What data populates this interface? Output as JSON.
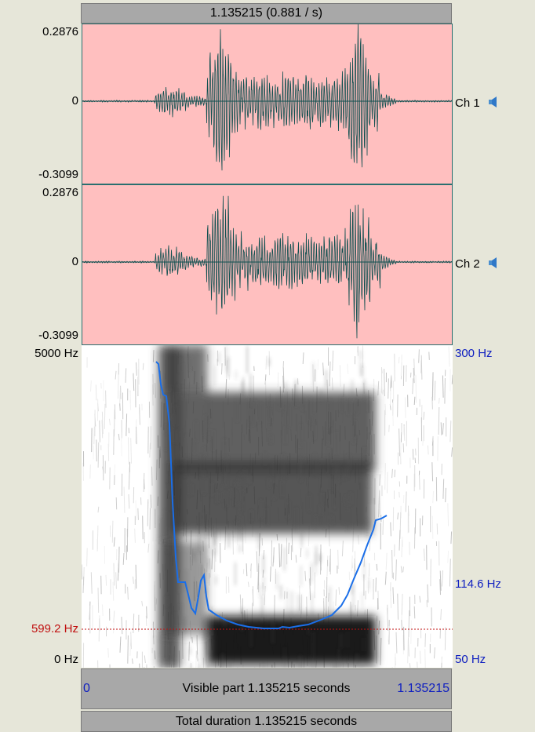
{
  "top_bar": {
    "label": "1.135215 (0.881 / s)"
  },
  "channel1": {
    "max_label": "0.2876",
    "zero_label": "0",
    "min_label": "-0.3099",
    "name": "Ch 1"
  },
  "channel2": {
    "max_label": "0.2876",
    "zero_label": "0",
    "min_label": "-0.3099",
    "name": "Ch 2"
  },
  "spectrogram": {
    "top_freq_label": "5000 Hz",
    "cursor_freq_label": "599.2 Hz",
    "bottom_freq_label": "0 Hz",
    "pitch_top_label": "300 Hz",
    "pitch_mid_label": "114.6 Hz",
    "pitch_bottom_label": "50 Hz"
  },
  "visible_bar": {
    "start": "0",
    "label": "Visible part 1.135215 seconds",
    "end": "1.135215"
  },
  "total_bar": {
    "label": "Total duration 1.135215 seconds"
  },
  "colors": {
    "waveform_bg": "#ffbfbf",
    "waveform": "#0f4f4f",
    "pitch": "#1a6ee8",
    "cursor": "#c01010"
  }
}
